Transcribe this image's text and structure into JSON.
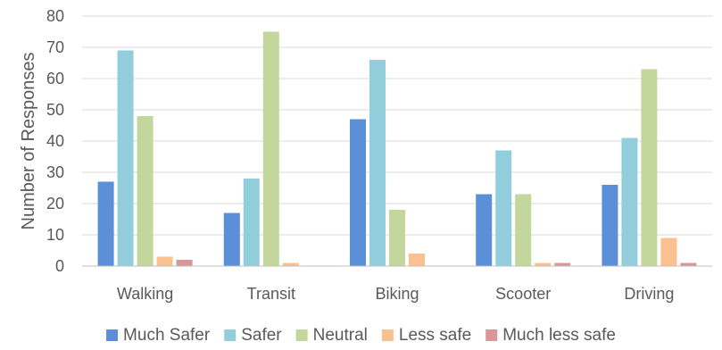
{
  "chart_data": {
    "type": "bar",
    "title": "",
    "xlabel": "",
    "ylabel": "Number of Responses",
    "ylim": [
      0,
      80
    ],
    "yticks": [
      0,
      10,
      20,
      30,
      40,
      50,
      60,
      70,
      80
    ],
    "grid": true,
    "legend_position": "bottom",
    "categories": [
      "Walking",
      "Transit",
      "Biking",
      "Scooter",
      "Driving"
    ],
    "series": [
      {
        "name": "Much Safer",
        "color": "#5b8fd8",
        "values": [
          27,
          17,
          47,
          23,
          26
        ]
      },
      {
        "name": "Safer",
        "color": "#92cddc",
        "values": [
          69,
          28,
          66,
          37,
          41
        ]
      },
      {
        "name": "Neutral",
        "color": "#c3d69b",
        "values": [
          48,
          75,
          18,
          23,
          63
        ]
      },
      {
        "name": "Less safe",
        "color": "#fac090",
        "values": [
          3,
          1,
          4,
          1,
          9
        ]
      },
      {
        "name": "Much less safe",
        "color": "#d99694",
        "values": [
          2,
          0,
          0,
          1,
          1
        ]
      }
    ]
  }
}
